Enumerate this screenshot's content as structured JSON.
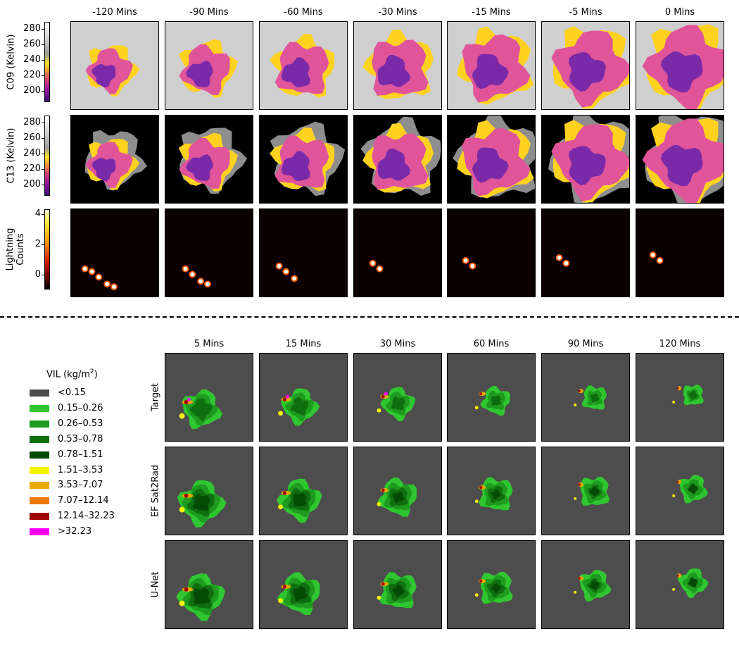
{
  "top": {
    "columns": [
      "-120 Mins",
      "-90 Mins",
      "-60 Mins",
      "-30 Mins",
      "-15 Mins",
      "-5 Mins",
      "0 Mins"
    ],
    "rows": [
      {
        "label": "C09 (Kelvin)",
        "type": "ir",
        "bg": "#cfcfcf",
        "ticks": [
          "280",
          "260",
          "240",
          "220",
          "200"
        ]
      },
      {
        "label": "C13 (Kelvin)",
        "type": "ir",
        "bg": "#000000",
        "ticks": [
          "280",
          "260",
          "240",
          "220",
          "200"
        ]
      },
      {
        "label": "Lightning Counts",
        "type": "lightning",
        "bg": "#0b0000",
        "ticks": [
          "4",
          "2",
          "0"
        ]
      }
    ]
  },
  "legend": {
    "title": "VIL (kg/m",
    "title_sup": "2",
    "title_end": ")",
    "items": [
      {
        "label": "<0.15",
        "color": "#4d4d4d"
      },
      {
        "label": "0.15–0.26",
        "color": "#2fc62f"
      },
      {
        "label": "0.26–0.53",
        "color": "#1e9a1e"
      },
      {
        "label": "0.53–0.78",
        "color": "#0f6e0f"
      },
      {
        "label": "0.78–1.51",
        "color": "#054a05"
      },
      {
        "label": "1.51–3.53",
        "color": "#f5f500"
      },
      {
        "label": "3.53–7.07",
        "color": "#e8a800"
      },
      {
        "label": "7.07–12.14",
        "color": "#f07800"
      },
      {
        "label": "12.14–32.23",
        "color": "#a00000"
      },
      {
        "label": ">32.23",
        "color": "#ff00ff"
      }
    ]
  },
  "bottom": {
    "columns": [
      "5 Mins",
      "15 Mins",
      "30 Mins",
      "60 Mins",
      "90 Mins",
      "120 Mins"
    ],
    "rows": [
      {
        "label": "Target"
      },
      {
        "label": "EF Sat2Rad"
      },
      {
        "label": "U-Net"
      }
    ]
  }
}
